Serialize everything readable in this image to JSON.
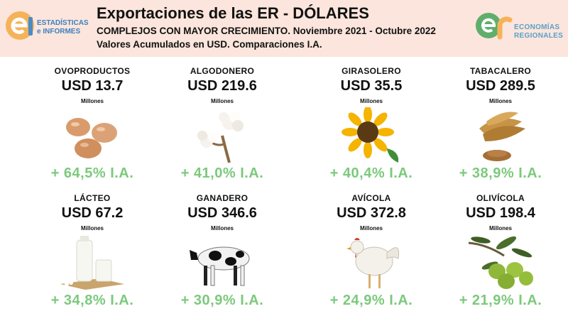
{
  "header": {
    "title": "Exportaciones de las ER - DÓLARES",
    "subtitle_1": "COMPLEJOS CON MAYOR CRECIMIENTO. Noviembre 2021 - Octubre 2022",
    "subtitle_2": "Valores Acumulados en USD. Comparaciones I.A.",
    "logo_left": {
      "line1": "ESTADÍSTICAS",
      "line2": "e INFORMES",
      "icon": "ei-logo",
      "color": "#f5b25a"
    },
    "logo_right": {
      "line1": "ECONOMÍAS",
      "line2": "REGIONALES",
      "icon": "er-logo",
      "color": "#5aa0c8"
    }
  },
  "colors": {
    "header_bg": "#fbe5dc",
    "growth": "#7cc97c"
  },
  "cards": [
    {
      "name": "OVOPRODUCTOS",
      "value": "USD 13.7",
      "unit": "Millones",
      "growth": "+ 64,5% I.A.",
      "icon": "eggs-icon"
    },
    {
      "name": "ALGODONERO",
      "value": "USD 219.6",
      "unit": "Millones",
      "growth": "+ 41,0% I.A.",
      "icon": "cotton-icon"
    },
    {
      "name": "GIRASOLERO",
      "value": "USD 35.5",
      "unit": "Millones",
      "growth": "+ 40,4% I.A.",
      "icon": "sunflower-icon"
    },
    {
      "name": "TABACALERO",
      "value": "USD 289.5",
      "unit": "Millones",
      "growth": "+ 38,9% I.A.",
      "icon": "tobacco-icon"
    },
    {
      "name": "LÁCTEO",
      "value": "USD 67.2",
      "unit": "Millones",
      "growth": "+ 34,8% I.A.",
      "icon": "milk-icon"
    },
    {
      "name": "GANADERO",
      "value": "USD 346.6",
      "unit": "Millones",
      "growth": "+ 30,9% I.A.",
      "icon": "cow-icon"
    },
    {
      "name": "AVÍCOLA",
      "value": "USD 372.8",
      "unit": "Millones",
      "growth": "+ 24,9% I.A.",
      "icon": "chicken-icon"
    },
    {
      "name": "OLIVÍCOLA",
      "value": "USD 198.4",
      "unit": "Millones",
      "growth": "+ 21,9% I.A.",
      "icon": "olive-icon"
    }
  ]
}
